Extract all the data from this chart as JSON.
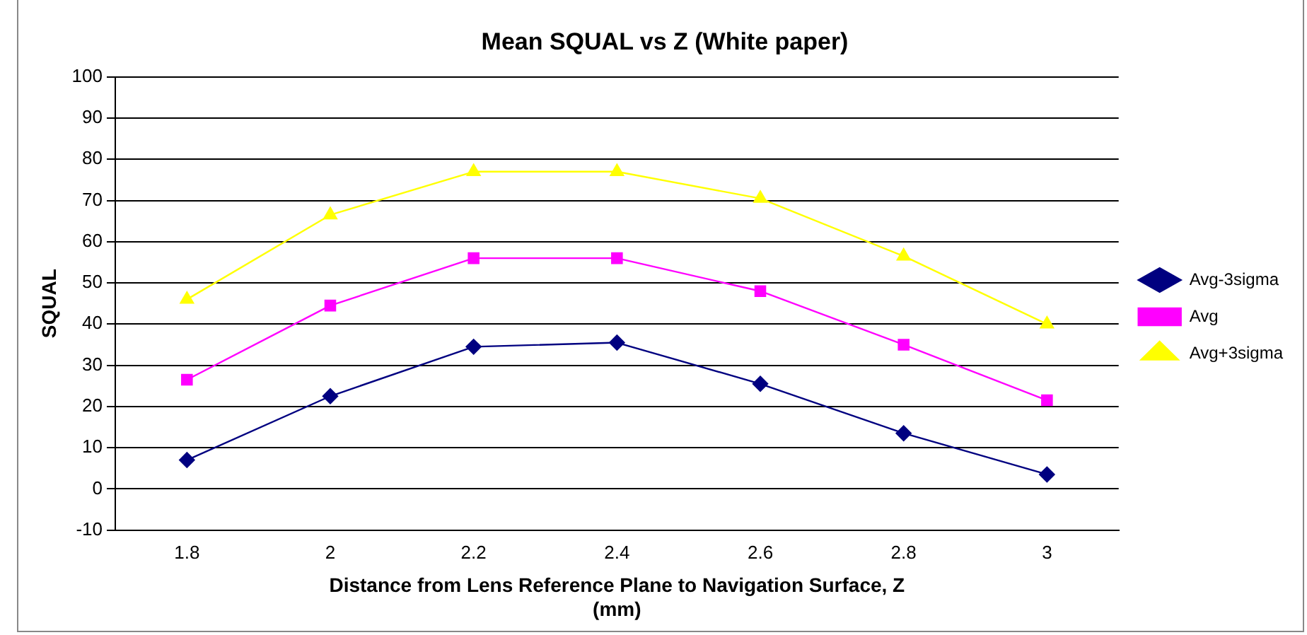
{
  "chart_data": {
    "type": "line",
    "title": "Mean SQUAL vs Z (White paper)",
    "xlabel": "Distance from Lens Reference Plane to Navigation Surface, Z\n(mm)",
    "ylabel": "SQUAL",
    "categories": [
      "1.8",
      "2",
      "2.2",
      "2.4",
      "2.6",
      "2.8",
      "3"
    ],
    "series": [
      {
        "name": "Avg-3sigma",
        "color": "#000080",
        "marker": "diamond",
        "values": [
          7,
          22.5,
          34.5,
          35.5,
          25.5,
          13.5,
          3.5
        ]
      },
      {
        "name": "Avg",
        "color": "#ff00ff",
        "marker": "square",
        "values": [
          26.5,
          44.5,
          56,
          56,
          48,
          35,
          21.5
        ]
      },
      {
        "name": "Avg+3sigma",
        "color": "#ffff00",
        "marker": "triangle",
        "values": [
          46,
          66.5,
          77,
          77,
          70.5,
          56.5,
          40
        ]
      }
    ],
    "ylim": [
      -10,
      100
    ],
    "yticks": [
      -10,
      0,
      10,
      20,
      30,
      40,
      50,
      60,
      70,
      80,
      90,
      100
    ],
    "grid": "y",
    "legend": "right",
    "line_style": "solid"
  }
}
